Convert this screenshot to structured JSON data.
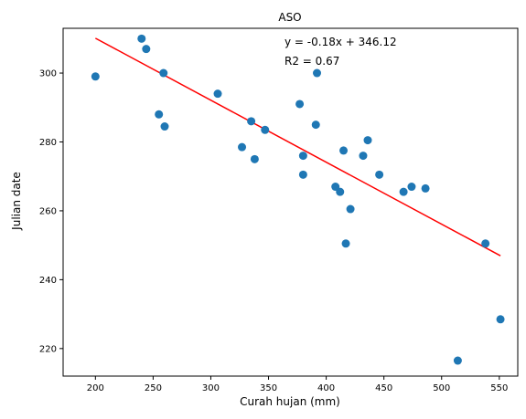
{
  "chart_data": {
    "type": "scatter",
    "title": "ASO",
    "xlabel": "Curah hujan (mm)",
    "ylabel": "Julian date",
    "xlim": [
      172,
      566
    ],
    "ylim": [
      212,
      313
    ],
    "xticks": [
      200,
      250,
      300,
      350,
      400,
      450,
      500,
      550
    ],
    "yticks": [
      220,
      240,
      260,
      280,
      300
    ],
    "grid": false,
    "annotations": [
      "y = -0.18x + 346.12",
      "R2 = 0.67"
    ],
    "points": [
      {
        "x": 200,
        "y": 299
      },
      {
        "x": 240,
        "y": 310
      },
      {
        "x": 244,
        "y": 307
      },
      {
        "x": 255,
        "y": 288
      },
      {
        "x": 259,
        "y": 300
      },
      {
        "x": 260,
        "y": 284.5
      },
      {
        "x": 306,
        "y": 294
      },
      {
        "x": 327,
        "y": 278.5
      },
      {
        "x": 335,
        "y": 286
      },
      {
        "x": 338,
        "y": 275
      },
      {
        "x": 347,
        "y": 283.5
      },
      {
        "x": 377,
        "y": 291
      },
      {
        "x": 380,
        "y": 276
      },
      {
        "x": 380,
        "y": 270.5
      },
      {
        "x": 391,
        "y": 285
      },
      {
        "x": 392,
        "y": 300
      },
      {
        "x": 408,
        "y": 267
      },
      {
        "x": 412,
        "y": 265.5
      },
      {
        "x": 415,
        "y": 277.5
      },
      {
        "x": 417,
        "y": 250.5
      },
      {
        "x": 421,
        "y": 260.5
      },
      {
        "x": 432,
        "y": 276
      },
      {
        "x": 436,
        "y": 280.5
      },
      {
        "x": 446,
        "y": 270.5
      },
      {
        "x": 467,
        "y": 265.5
      },
      {
        "x": 474,
        "y": 267
      },
      {
        "x": 486,
        "y": 266.5
      },
      {
        "x": 514,
        "y": 216.5
      },
      {
        "x": 538,
        "y": 250.5
      },
      {
        "x": 551,
        "y": 228.5
      }
    ],
    "trendline": {
      "slope": -0.18,
      "intercept": 346.12,
      "x_range": [
        200,
        551
      ]
    },
    "colors": {
      "points": "#1f77b4",
      "trendline": "#ff0000"
    }
  }
}
